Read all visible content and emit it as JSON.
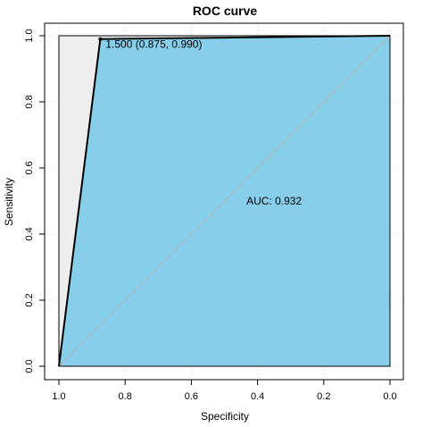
{
  "chart_data": {
    "type": "area",
    "title": "ROC curve",
    "xlabel": "Specificity",
    "ylabel": "Sensitivity",
    "x_reversed": true,
    "xlim": [
      1.0,
      0.0
    ],
    "ylim": [
      0.0,
      1.0
    ],
    "x_ticks": [
      1.0,
      0.8,
      0.6,
      0.4,
      0.2,
      0.0
    ],
    "x_tick_labels": [
      "1.0",
      "0.8",
      "0.6",
      "0.4",
      "0.2",
      "0.0"
    ],
    "y_ticks": [
      0.0,
      0.2,
      0.4,
      0.6,
      0.8,
      1.0
    ],
    "y_tick_labels": [
      "0.0",
      "0.2",
      "0.4",
      "0.6",
      "0.8",
      "1.0"
    ],
    "grid": true,
    "series": [
      {
        "x": [
          1.0,
          0.875,
          0.0
        ],
        "y": [
          0.0,
          0.99,
          1.0
        ]
      }
    ],
    "threshold_point": {
      "x": 0.875,
      "y": 0.99,
      "label": "1.500 (0.875, 0.990)"
    },
    "auc_label": "AUC: 0.932",
    "colors": {
      "auc_fill": "#87ceeb",
      "partial_fill": "#eeeeee",
      "curve": "#000000",
      "diagonal": "#b3b3b3",
      "grid": "#d3d3d3"
    }
  }
}
